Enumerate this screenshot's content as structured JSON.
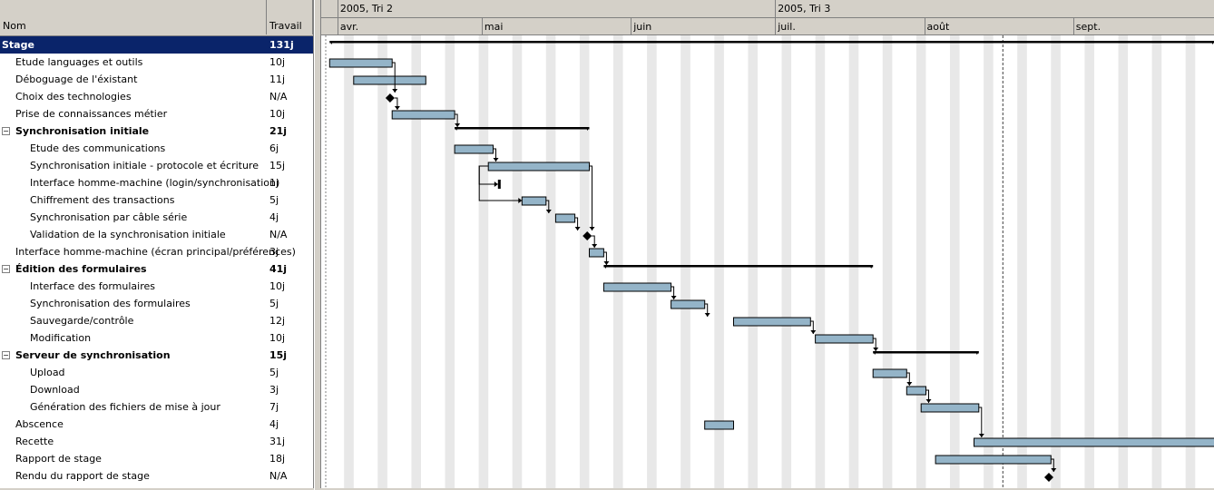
{
  "columns": {
    "name": "Nom",
    "work": "Travail"
  },
  "tasks": [
    {
      "name": "Stage",
      "work": "131j",
      "level": 0,
      "summary": true,
      "selected": true
    },
    {
      "name": "Etude languages et outils",
      "work": "10j",
      "level": 1
    },
    {
      "name": "Déboguage de l'éxistant",
      "work": "11j",
      "level": 1
    },
    {
      "name": "Choix des technologies",
      "work": "N/A",
      "level": 1
    },
    {
      "name": "Prise de connaissances métier",
      "work": "10j",
      "level": 1
    },
    {
      "name": "Synchronisation initiale",
      "work": "21j",
      "level": 1,
      "summary": true,
      "toggle": "−"
    },
    {
      "name": "Etude des communications",
      "work": "6j",
      "level": 2
    },
    {
      "name": "Synchronisation initiale - protocole et écriture",
      "work": "15j",
      "level": 2
    },
    {
      "name": "Interface homme-machine (login/synchronisation)",
      "work": "1j",
      "level": 2
    },
    {
      "name": "Chiffrement des transactions",
      "work": "5j",
      "level": 2
    },
    {
      "name": "Synchronisation par câble série",
      "work": "4j",
      "level": 2
    },
    {
      "name": "Validation de la synchronisation initiale",
      "work": "N/A",
      "level": 2
    },
    {
      "name": "Interface homme-machine (écran principal/préférences)",
      "work": "3j",
      "level": 1
    },
    {
      "name": "Édition des formulaires",
      "work": "41j",
      "level": 1,
      "summary": true,
      "toggle": "−"
    },
    {
      "name": "Interface des formulaires",
      "work": "10j",
      "level": 2
    },
    {
      "name": "Synchronisation des formulaires",
      "work": "5j",
      "level": 2
    },
    {
      "name": "Sauvegarde/contrôle",
      "work": "12j",
      "level": 2
    },
    {
      "name": "Modification",
      "work": "10j",
      "level": 2
    },
    {
      "name": "Serveur de synchronisation",
      "work": "15j",
      "level": 1,
      "summary": true,
      "toggle": "−"
    },
    {
      "name": "Upload",
      "work": "5j",
      "level": 2
    },
    {
      "name": "Download",
      "work": "3j",
      "level": 2
    },
    {
      "name": "Génération des fichiers de mise à jour",
      "work": "7j",
      "level": 2
    },
    {
      "name": "Abscence",
      "work": "4j",
      "level": 1
    },
    {
      "name": "Recette",
      "work": "31j",
      "level": 1
    },
    {
      "name": "Rapport de stage",
      "work": "18j",
      "level": 1
    },
    {
      "name": "Rendu du rapport de stage",
      "work": "N/A",
      "level": 1
    }
  ],
  "timeline": {
    "quarters": [
      "2005, Tri 2",
      "2005, Tri 3"
    ],
    "months": [
      "avr.",
      "mai",
      "juin",
      "juil.",
      "août",
      "sept."
    ]
  },
  "schedule": [
    {
      "type": "summary",
      "start": "03-30",
      "end": "09-29"
    },
    {
      "type": "task",
      "start": "03-30",
      "end": "04-11"
    },
    {
      "type": "task",
      "start": "04-04",
      "end": "04-18"
    },
    {
      "type": "milestone",
      "date": "04-11"
    },
    {
      "type": "task",
      "start": "04-12",
      "end": "04-24"
    },
    {
      "type": "summary",
      "start": "04-25",
      "end": "05-22"
    },
    {
      "type": "task",
      "start": "04-25",
      "end": "05-02"
    },
    {
      "type": "task",
      "start": "05-02",
      "end": "05-22"
    },
    {
      "type": "milestone-small",
      "date": "05-04"
    },
    {
      "type": "task",
      "start": "05-09",
      "end": "05-13"
    },
    {
      "type": "task",
      "start": "05-16",
      "end": "05-19"
    },
    {
      "type": "milestone",
      "date": "05-22"
    },
    {
      "type": "task",
      "start": "05-23",
      "end": "05-25"
    },
    {
      "type": "summary",
      "start": "05-26",
      "end": "07-20"
    },
    {
      "type": "task",
      "start": "05-26",
      "end": "06-08"
    },
    {
      "type": "task",
      "start": "06-09",
      "end": "06-15"
    },
    {
      "type": "task",
      "start": "06-22",
      "end": "07-07"
    },
    {
      "type": "task",
      "start": "07-09",
      "end": "07-20"
    },
    {
      "type": "summary",
      "start": "07-21",
      "end": "08-11"
    },
    {
      "type": "task",
      "start": "07-21",
      "end": "07-27"
    },
    {
      "type": "task",
      "start": "07-28",
      "end": "07-31"
    },
    {
      "type": "task",
      "start": "07-31",
      "end": "08-11"
    },
    {
      "type": "task",
      "start": "06-16",
      "end": "06-21"
    },
    {
      "type": "task",
      "start": "08-11",
      "end": "09-29"
    },
    {
      "type": "task",
      "start": "08-03",
      "end": "08-26"
    },
    {
      "type": "milestone",
      "date": "08-26"
    }
  ],
  "status_date": "08-17",
  "colors": {
    "bar": "#94b4c8",
    "summary": "#000000",
    "selected": "#0a246a",
    "weekend": "#e8e8e8"
  }
}
